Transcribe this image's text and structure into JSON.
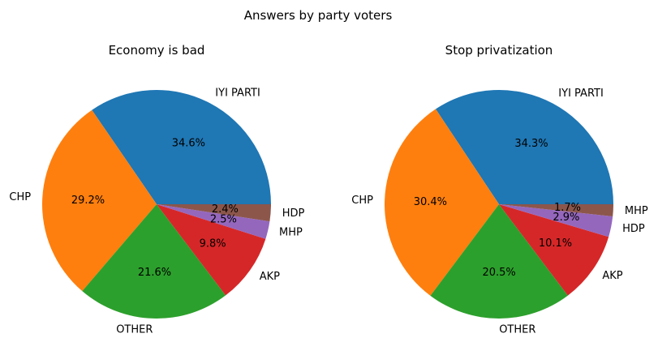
{
  "figure": {
    "suptitle": "Answers by party voters"
  },
  "chart_data": [
    {
      "type": "pie",
      "title": "Economy is bad",
      "labels": [
        "IYI PARTI",
        "CHP",
        "OTHER",
        "AKP",
        "MHP",
        "HDP"
      ],
      "values": [
        34.6,
        29.2,
        21.6,
        9.8,
        2.5,
        2.4
      ],
      "pct_labels": [
        "34.6%",
        "29.2%",
        "21.6%",
        "9.8%",
        "2.5%",
        "2.4%"
      ],
      "colors": [
        "#1f77b4",
        "#ff7f0e",
        "#2ca02c",
        "#d62728",
        "#9467bd",
        "#8c564b"
      ]
    },
    {
      "type": "pie",
      "title": "Stop privatization",
      "labels": [
        "IYI PARTI",
        "CHP",
        "OTHER",
        "AKP",
        "HDP",
        "MHP"
      ],
      "values": [
        34.3,
        30.4,
        20.5,
        10.1,
        2.9,
        1.7
      ],
      "pct_labels": [
        "34.3%",
        "30.4%",
        "20.5%",
        "10.1%",
        "2.9%",
        "1.7%"
      ],
      "colors": [
        "#1f77b4",
        "#ff7f0e",
        "#2ca02c",
        "#d62728",
        "#9467bd",
        "#8c564b"
      ]
    }
  ]
}
